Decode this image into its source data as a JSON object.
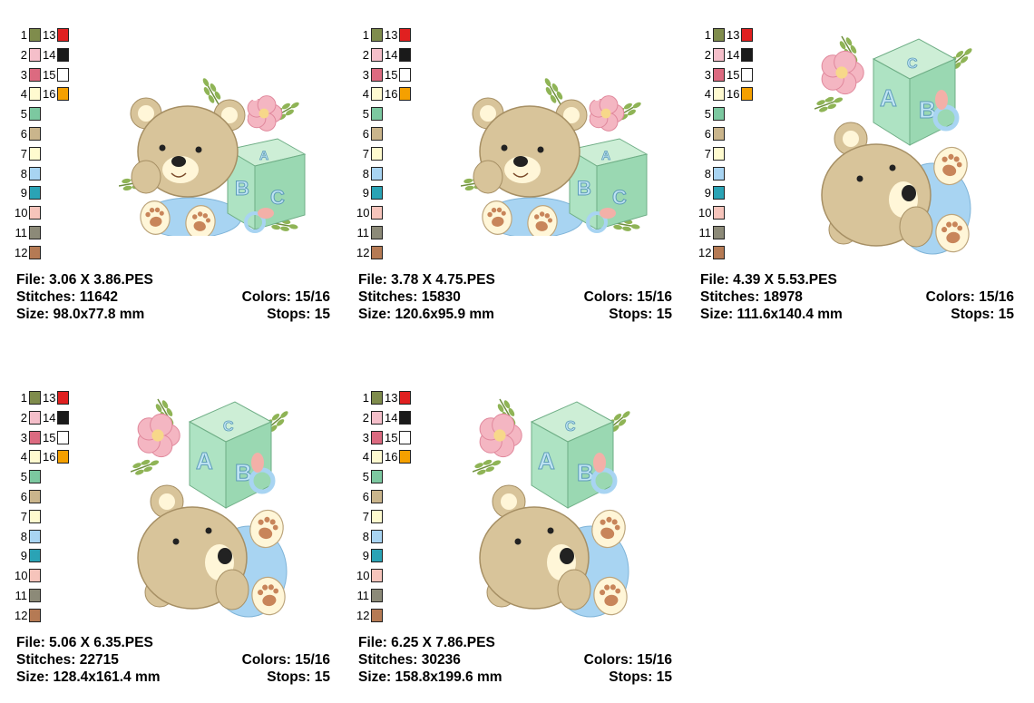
{
  "palette": {
    "colors": [
      {
        "num": "1",
        "color": "#7f8c4c"
      },
      {
        "num": "2",
        "color": "#f5bfca"
      },
      {
        "num": "3",
        "color": "#dc6a80"
      },
      {
        "num": "4",
        "color": "#fffad0"
      },
      {
        "num": "5",
        "color": "#7cc8a0"
      },
      {
        "num": "6",
        "color": "#cab58c"
      },
      {
        "num": "7",
        "color": "#fffbcf"
      },
      {
        "num": "8",
        "color": "#a8d4f2"
      },
      {
        "num": "9",
        "color": "#2aa3b5"
      },
      {
        "num": "10",
        "color": "#f6c4bb"
      },
      {
        "num": "11",
        "color": "#8c8a78"
      },
      {
        "num": "12",
        "color": "#b57a54"
      }
    ],
    "extra": [
      {
        "num": "13",
        "color": "#e02020"
      },
      {
        "num": "14",
        "color": "#1a1a1a"
      },
      {
        "num": "15",
        "color": "#ffffff"
      },
      {
        "num": "16",
        "color": "#f5a000"
      }
    ]
  },
  "designs": [
    {
      "file": "File: 3.06 X 3.86.PES",
      "stitches": "Stitches: 11642",
      "size": "Size: 98.0x77.8 mm",
      "colors": "Colors: 15/16",
      "stops": "Stops: 15",
      "layout": "landscape"
    },
    {
      "file": "File: 3.78 X 4.75.PES",
      "stitches": "Stitches: 15830",
      "size": "Size: 120.6x95.9 mm",
      "colors": "Colors: 15/16",
      "stops": "Stops: 15",
      "layout": "landscape"
    },
    {
      "file": "File: 4.39 X 5.53.PES",
      "stitches": "Stitches: 18978",
      "size": "Size: 111.6x140.4 mm",
      "colors": "Colors: 15/16",
      "stops": "Stops: 15",
      "layout": "portrait"
    },
    {
      "file": "File: 5.06 X 6.35.PES",
      "stitches": "Stitches: 22715",
      "size": "Size: 128.4x161.4 mm",
      "colors": "Colors: 15/16",
      "stops": "Stops: 15",
      "layout": "portrait"
    },
    {
      "file": "File: 6.25 X 7.86.PES",
      "stitches": "Stitches: 30236",
      "size": "Size: 158.8x199.6 mm",
      "colors": "Colors: 15/16",
      "stops": "Stops: 15",
      "layout": "portrait"
    }
  ],
  "block_letters": {
    "a": "A",
    "b": "B",
    "c": "C"
  }
}
